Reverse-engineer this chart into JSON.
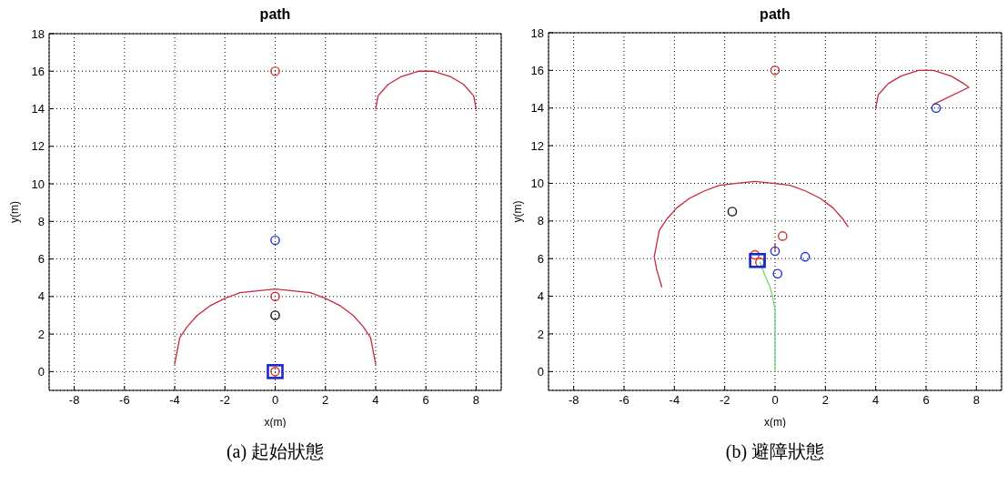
{
  "chart_data": [
    {
      "type": "scatter",
      "title": "path",
      "xlabel": "x(m)",
      "ylabel": "y(m)",
      "xlim": [
        -9,
        9
      ],
      "ylim": [
        -1,
        18
      ],
      "xticks": [
        -8,
        -6,
        -4,
        -2,
        0,
        2,
        4,
        6,
        8
      ],
      "yticks": [
        0,
        2,
        4,
        6,
        8,
        10,
        12,
        14,
        16,
        18
      ],
      "grid": true,
      "marker": "circle",
      "annotations": [
        "(a) 起始狀態"
      ],
      "series": [
        {
          "type": "line",
          "marker": "none",
          "color": "#c8283c",
          "x": [
            -4,
            -3.9,
            -3.8,
            -3.5,
            -3.1,
            -2.6,
            -2,
            -1.4,
            -0.7,
            0,
            0.7,
            1.4,
            2,
            2.6,
            3.1,
            3.5,
            3.8,
            3.9,
            4
          ],
          "values": [
            0.4,
            1.1,
            1.8,
            2.4,
            3.0,
            3.5,
            3.9,
            4.2,
            4.3,
            4.4,
            4.3,
            4.2,
            3.9,
            3.5,
            3.0,
            2.4,
            1.8,
            1.1,
            0.4
          ]
        },
        {
          "type": "line",
          "marker": "none",
          "color": "#c8283c",
          "x": [
            4,
            4.1,
            4.5,
            5,
            5.7,
            6,
            6.3,
            7,
            7.5,
            7.9,
            8
          ],
          "values": [
            14,
            14.7,
            15.3,
            15.7,
            16,
            16,
            16,
            15.7,
            15.3,
            14.7,
            14
          ]
        },
        {
          "color": "#d03030",
          "x": [
            0,
            0,
            0
          ],
          "values": [
            16,
            4,
            0
          ]
        },
        {
          "color": "#1f2fd6",
          "x": [
            0
          ],
          "values": [
            7
          ]
        },
        {
          "color": "#111111",
          "x": [
            0
          ],
          "values": [
            3
          ]
        },
        {
          "color": "#1a28c8",
          "marker": "square",
          "x": [
            0
          ],
          "values": [
            0
          ]
        }
      ]
    },
    {
      "type": "scatter",
      "title": "path",
      "xlabel": "x(m)",
      "ylabel": "y(m)",
      "xlim": [
        -9,
        9
      ],
      "ylim": [
        -1,
        18
      ],
      "xticks": [
        -8,
        -6,
        -4,
        -2,
        0,
        2,
        4,
        6,
        8
      ],
      "yticks": [
        0,
        2,
        4,
        6,
        8,
        10,
        12,
        14,
        16,
        18
      ],
      "grid": true,
      "marker": "circle",
      "annotations": [
        "(b) 避障狀態"
      ],
      "series": [
        {
          "type": "line",
          "marker": "none",
          "color": "#c8283c",
          "x": [
            -4.5,
            -4.7,
            -4.8,
            -4.7,
            -4.6,
            -4.3,
            -3.9,
            -3.4,
            -2.8,
            -2.2,
            -1.5,
            -0.8,
            -0.1,
            0.6,
            1.2,
            1.8,
            2.3,
            2.7,
            2.9
          ],
          "values": [
            4.5,
            5.4,
            6.1,
            6.8,
            7.5,
            8.1,
            8.7,
            9.2,
            9.6,
            9.9,
            10,
            10.1,
            10,
            9.9,
            9.6,
            9.2,
            8.7,
            8.1,
            7.7
          ]
        },
        {
          "type": "line",
          "marker": "none",
          "color": "#c8283c",
          "x": [
            4,
            4.1,
            4.5,
            5,
            5.7,
            6,
            6.3,
            7,
            7.5,
            7.7,
            6.3
          ],
          "values": [
            14,
            14.7,
            15.3,
            15.7,
            16,
            16,
            16,
            15.7,
            15.3,
            15.1,
            14.2
          ]
        },
        {
          "type": "line",
          "marker": "none",
          "color": "#70d870",
          "x": [
            0,
            0,
            -0.1,
            -0.2,
            -0.4,
            -0.6
          ],
          "values": [
            0,
            3.3,
            4,
            4.5,
            5.1,
            5.8
          ]
        },
        {
          "type": "line",
          "marker": "none",
          "color": "#d03030",
          "x": [
            0,
            0
          ],
          "values": [
            6.4,
            6.8
          ]
        },
        {
          "color": "#d03030",
          "x": [
            0,
            0.3,
            -0.8,
            -0.6
          ],
          "values": [
            16,
            7.2,
            6.2,
            5.8
          ]
        },
        {
          "color": "#1f2fd6",
          "x": [
            0,
            1.2,
            0.1,
            6.4
          ],
          "values": [
            6.4,
            6.1,
            5.2,
            14
          ]
        },
        {
          "color": "#111111",
          "x": [
            -1.7
          ],
          "values": [
            8.5
          ]
        },
        {
          "color": "#1a28c8",
          "marker": "square",
          "x": [
            -0.7
          ],
          "values": [
            5.9
          ]
        }
      ]
    }
  ]
}
